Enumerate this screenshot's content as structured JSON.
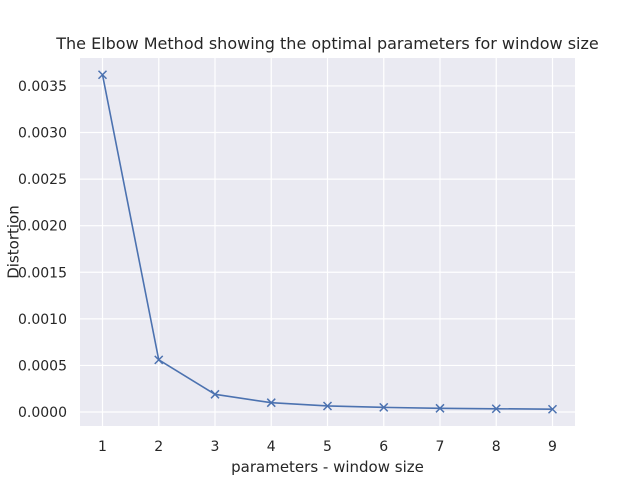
{
  "chart_data": {
    "type": "line",
    "title": "The Elbow Method showing the optimal parameters for window size",
    "xlabel": "parameters - window size",
    "ylabel": "Distortion",
    "x": [
      1,
      2,
      3,
      4,
      5,
      6,
      7,
      8,
      9
    ],
    "series": [
      {
        "values": [
          0.00362,
          0.00056,
          0.00019,
          0.0001,
          6.5e-05,
          5e-05,
          4e-05,
          3.5e-05,
          3e-05
        ],
        "color": "#4c72b0",
        "marker": "x"
      }
    ],
    "xticks": [
      "1",
      "2",
      "3",
      "4",
      "5",
      "6",
      "7",
      "8",
      "9"
    ],
    "yticks": [
      "0.0000",
      "0.0005",
      "0.0010",
      "0.0015",
      "0.0020",
      "0.0025",
      "0.0030",
      "0.0035"
    ],
    "ytick_values": [
      0,
      0.0005,
      0.001,
      0.0015,
      0.002,
      0.0025,
      0.003,
      0.0035
    ],
    "xlim": [
      0.6,
      9.4
    ],
    "ylim": [
      -0.00015,
      0.0038
    ],
    "grid": true,
    "background": "#eaeaf2",
    "grid_color": "#ffffff"
  }
}
